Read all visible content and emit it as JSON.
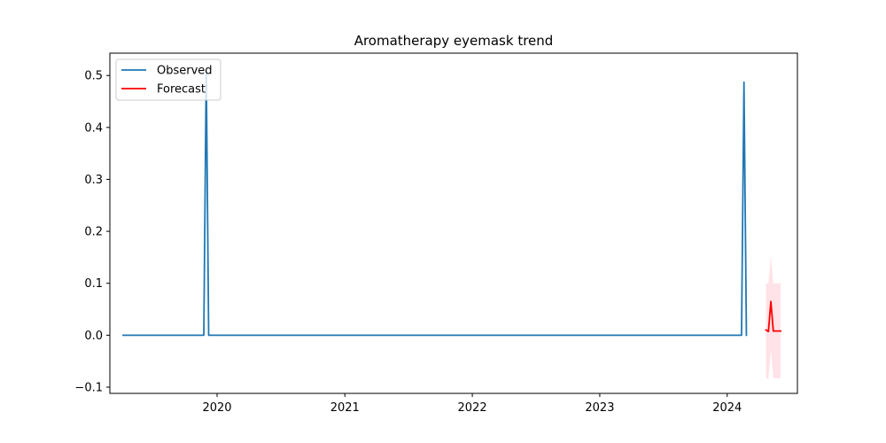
{
  "chart_data": {
    "type": "line",
    "title": "Aromatherapy eyemask trend",
    "xlabel": "",
    "ylabel": "",
    "x_ticks": [
      "2020",
      "2021",
      "2022",
      "2023",
      "2024"
    ],
    "y_ticks": [
      "−0.1",
      "0.0",
      "0.1",
      "0.2",
      "0.3",
      "0.4",
      "0.5"
    ],
    "xlim": [
      "2019-02-28",
      "2024-07-20"
    ],
    "ylim": [
      -0.112,
      0.543
    ],
    "grid": false,
    "legend_position": "top-left",
    "series": [
      {
        "name": "Observed",
        "color": "#1f77b4",
        "x": [
          "2019-04-07",
          "2019-11-24",
          "2019-12-01",
          "2019-12-08",
          "2024-02-11",
          "2024-02-18",
          "2024-02-25"
        ],
        "y": [
          0.0,
          0.0,
          0.51,
          0.0,
          0.0,
          0.487,
          0.0
        ]
      },
      {
        "name": "Forecast",
        "color": "#ff0000",
        "x": [
          "2024-04-21",
          "2024-04-28",
          "2024-05-05",
          "2024-05-12",
          "2024-05-19",
          "2024-05-26",
          "2024-06-02"
        ],
        "y": [
          0.01,
          0.007,
          0.065,
          0.008,
          0.008,
          0.008,
          0.008
        ],
        "lower": [
          -0.082,
          -0.085,
          -0.03,
          -0.083,
          -0.083,
          -0.083,
          -0.083
        ],
        "upper": [
          0.1,
          0.1,
          0.153,
          0.1,
          0.1,
          0.1,
          0.1
        ],
        "band_color": "#ffc0cb"
      }
    ]
  }
}
